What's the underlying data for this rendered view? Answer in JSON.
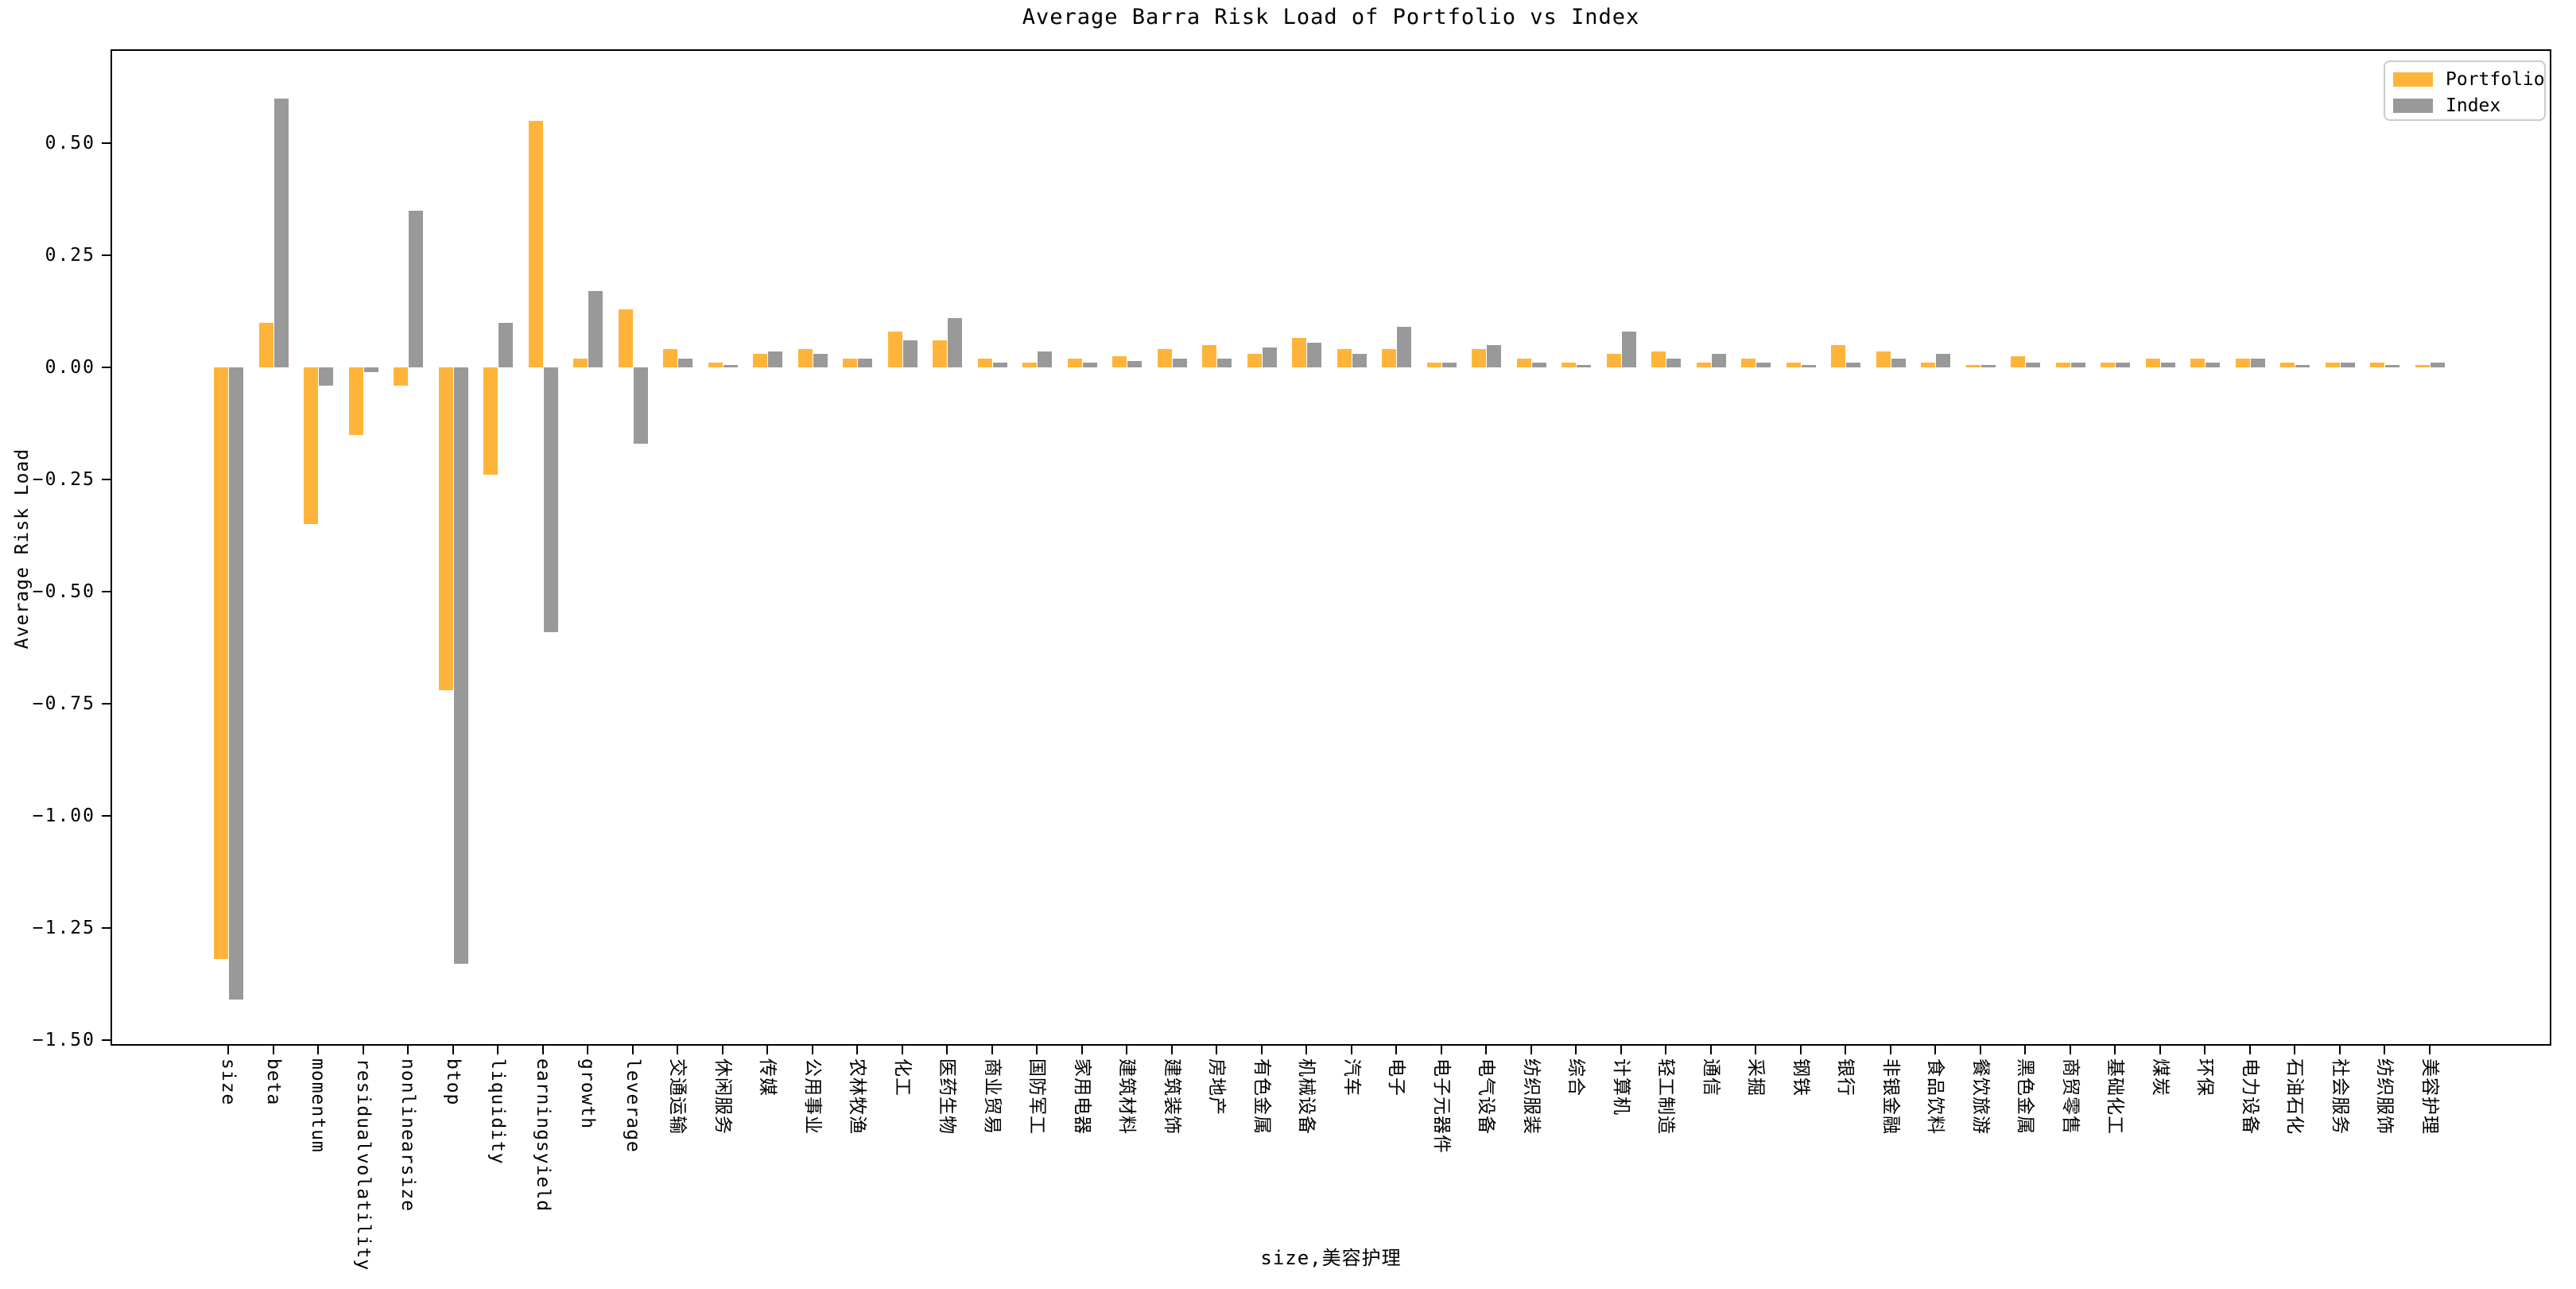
{
  "chart_data": {
    "type": "bar",
    "title": "Average Barra Risk Load of Portfolio vs Index",
    "xlabel": "size,美容护理",
    "ylabel": "Average Risk Load",
    "ylim": [
      -1.51,
      0.71
    ],
    "grid": false,
    "legend_position": "upper right",
    "background": "#ffffff",
    "categories": [
      "size",
      "beta",
      "momentum",
      "residualvolatility",
      "nonlinearsize",
      "btop",
      "liquidity",
      "earningsyield",
      "growth",
      "leverage",
      "交通运输",
      "休闲服务",
      "传媒",
      "公用事业",
      "农林牧渔",
      "化工",
      "医药生物",
      "商业贸易",
      "国防军工",
      "家用电器",
      "建筑材料",
      "建筑装饰",
      "房地产",
      "有色金属",
      "机械设备",
      "汽车",
      "电子",
      "电子元器件",
      "电气设备",
      "纺织服装",
      "综合",
      "计算机",
      "轻工制造",
      "通信",
      "采掘",
      "钢铁",
      "银行",
      "非银金融",
      "食品饮料",
      "餐饮旅游",
      "黑色金属",
      "商贸零售",
      "基础化工",
      "煤炭",
      "环保",
      "电力设备",
      "石油石化",
      "社会服务",
      "纺织服饰",
      "美容护理"
    ],
    "series": [
      {
        "name": "Portfolio",
        "color": "#FEB43A",
        "values": [
          -1.32,
          0.1,
          -0.35,
          -0.15,
          -0.04,
          -0.72,
          -0.24,
          0.55,
          0.02,
          0.13,
          0.04,
          0.01,
          0.03,
          0.04,
          0.02,
          0.08,
          0.06,
          0.02,
          0.01,
          0.02,
          0.025,
          0.04,
          0.05,
          0.03,
          0.065,
          0.04,
          0.04,
          0.01,
          0.04,
          0.02,
          0.01,
          0.03,
          0.035,
          0.01,
          0.02,
          0.01,
          0.05,
          0.035,
          0.01,
          0.005,
          0.025,
          0.01,
          0.01,
          0.02,
          0.02,
          0.02,
          0.01,
          0.01,
          0.01,
          0.005
        ]
      },
      {
        "name": "Index",
        "color": "#999999",
        "values": [
          -1.41,
          0.6,
          -0.04,
          -0.01,
          0.35,
          -1.33,
          0.1,
          -0.59,
          0.17,
          -0.17,
          0.02,
          0.005,
          0.035,
          0.03,
          0.02,
          0.06,
          0.11,
          0.01,
          0.035,
          0.01,
          0.015,
          0.02,
          0.02,
          0.045,
          0.055,
          0.03,
          0.09,
          0.01,
          0.05,
          0.01,
          0.005,
          0.08,
          0.02,
          0.03,
          0.01,
          0.005,
          0.01,
          0.02,
          0.03,
          0.005,
          0.01,
          0.01,
          0.01,
          0.01,
          0.01,
          0.02,
          0.005,
          0.01,
          0.005,
          0.01
        ]
      }
    ],
    "y_ticks": [
      {
        "label": "0.50",
        "value": 0.5
      },
      {
        "label": "0.25",
        "value": 0.25
      },
      {
        "label": "0.00",
        "value": 0.0
      },
      {
        "label": "−0.25",
        "value": -0.25
      },
      {
        "label": "−0.50",
        "value": -0.5
      },
      {
        "label": "−0.75",
        "value": -0.75
      },
      {
        "label": "−1.00",
        "value": -1.0
      },
      {
        "label": "−1.25",
        "value": -1.25
      },
      {
        "label": "−1.50",
        "value": -1.5
      }
    ]
  }
}
